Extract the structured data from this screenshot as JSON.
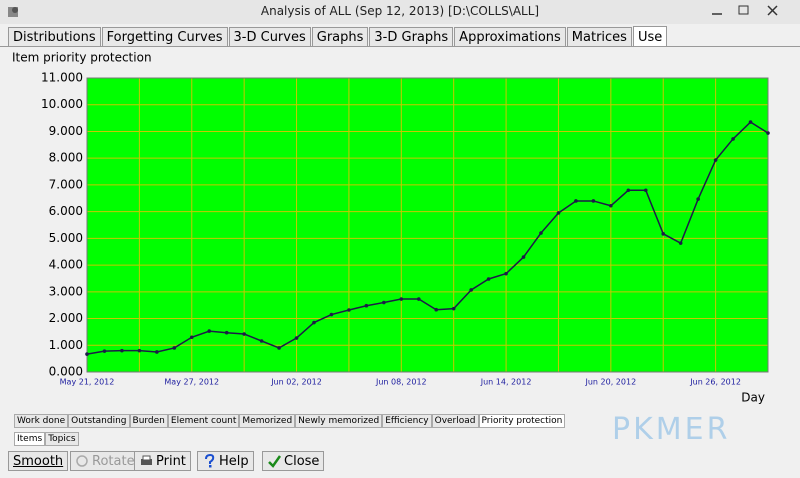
{
  "window": {
    "title": "Analysis of ALL (Sep 12, 2013) [D:\\COLLS\\ALL]"
  },
  "tabs": [
    {
      "label": "Distributions",
      "selected": false
    },
    {
      "label": "Forgetting Curves",
      "selected": false
    },
    {
      "label": "3-D Curves",
      "selected": false
    },
    {
      "label": "Graphs",
      "selected": false
    },
    {
      "label": "3-D Graphs",
      "selected": false
    },
    {
      "label": "Approximations",
      "selected": false
    },
    {
      "label": "Matrices",
      "selected": false
    },
    {
      "label": "Use",
      "selected": true
    }
  ],
  "chart_data": {
    "type": "line",
    "title": "Item priority protection",
    "xlabel": "Day",
    "x": [
      "2012-05-21",
      "2012-05-22",
      "2012-05-23",
      "2012-05-24",
      "2012-05-25",
      "2012-05-26",
      "2012-05-27",
      "2012-05-28",
      "2012-05-29",
      "2012-05-30",
      "2012-05-31",
      "2012-06-01",
      "2012-06-02",
      "2012-06-03",
      "2012-06-04",
      "2012-06-05",
      "2012-06-06",
      "2012-06-07",
      "2012-06-08",
      "2012-06-09",
      "2012-06-10",
      "2012-06-11",
      "2012-06-12",
      "2012-06-13",
      "2012-06-14",
      "2012-06-15",
      "2012-06-16",
      "2012-06-17",
      "2012-06-18",
      "2012-06-19",
      "2012-06-20",
      "2012-06-21",
      "2012-06-22",
      "2012-06-23",
      "2012-06-24",
      "2012-06-25",
      "2012-06-26",
      "2012-06-27",
      "2012-06-28",
      "2012-06-29"
    ],
    "values": [
      0.67,
      0.78,
      0.8,
      0.8,
      0.75,
      0.9,
      1.3,
      1.53,
      1.47,
      1.42,
      1.16,
      0.9,
      1.27,
      1.85,
      2.15,
      2.32,
      2.48,
      2.6,
      2.73,
      2.73,
      2.33,
      2.37,
      3.07,
      3.48,
      3.68,
      4.3,
      5.2,
      5.95,
      6.4,
      6.4,
      6.22,
      6.8,
      6.8,
      5.17,
      4.82,
      6.47,
      7.93,
      8.72,
      9.35,
      8.94
    ],
    "color": "#1c1c48",
    "background": "#00ff00",
    "grid": true,
    "grid_color": "#c8c800",
    "xlim": [
      "2012-05-21",
      "2012-06-29"
    ],
    "xticks": [
      {
        "value": "2012-05-21",
        "label": "May 21, 2012"
      },
      {
        "value": "2012-05-27",
        "label": "May 27, 2012"
      },
      {
        "value": "2012-06-02",
        "label": "Jun 02, 2012"
      },
      {
        "value": "2012-06-08",
        "label": "Jun 08, 2012"
      },
      {
        "value": "2012-06-14",
        "label": "Jun 14, 2012"
      },
      {
        "value": "2012-06-20",
        "label": "Jun 20, 2012"
      },
      {
        "value": "2012-06-26",
        "label": "Jun 26, 2012"
      }
    ],
    "x_minor_ticks": [
      "2012-05-24",
      "2012-05-30",
      "2012-06-05",
      "2012-06-11",
      "2012-06-17",
      "2012-06-23"
    ],
    "ylim": [
      0,
      11
    ],
    "yticks": [
      {
        "value": 0,
        "label": "0.000"
      },
      {
        "value": 1,
        "label": "1.000"
      },
      {
        "value": 2,
        "label": "2.000"
      },
      {
        "value": 3,
        "label": "3.000"
      },
      {
        "value": 4,
        "label": "4.000"
      },
      {
        "value": 5,
        "label": "5.000"
      },
      {
        "value": 6,
        "label": "6.000"
      },
      {
        "value": 7,
        "label": "7.000"
      },
      {
        "value": 8,
        "label": "8.000"
      },
      {
        "value": 9,
        "label": "9.000"
      },
      {
        "value": 10,
        "label": "10.000"
      },
      {
        "value": 11,
        "label": "11.000"
      }
    ]
  },
  "graph_tabs": [
    {
      "label": "Work done",
      "selected": false
    },
    {
      "label": "Outstanding",
      "selected": false
    },
    {
      "label": "Burden",
      "selected": false
    },
    {
      "label": "Element count",
      "selected": false
    },
    {
      "label": "Memorized",
      "selected": false
    },
    {
      "label": "Newly memorized",
      "selected": false
    },
    {
      "label": "Efficiency",
      "selected": false
    },
    {
      "label": "Overload",
      "selected": false
    },
    {
      "label": "Priority protection",
      "selected": true
    }
  ],
  "view_tabs": [
    {
      "label": "Items",
      "selected": true
    },
    {
      "label": "Topics",
      "selected": false
    }
  ],
  "buttons": [
    {
      "label": "Smooth",
      "enabled": true
    },
    {
      "label": "Rotate",
      "enabled": false
    },
    {
      "label": "Print",
      "enabled": true
    },
    {
      "label": "Help",
      "enabled": true
    },
    {
      "label": "Close",
      "enabled": true
    }
  ],
  "watermark": "PKMER"
}
